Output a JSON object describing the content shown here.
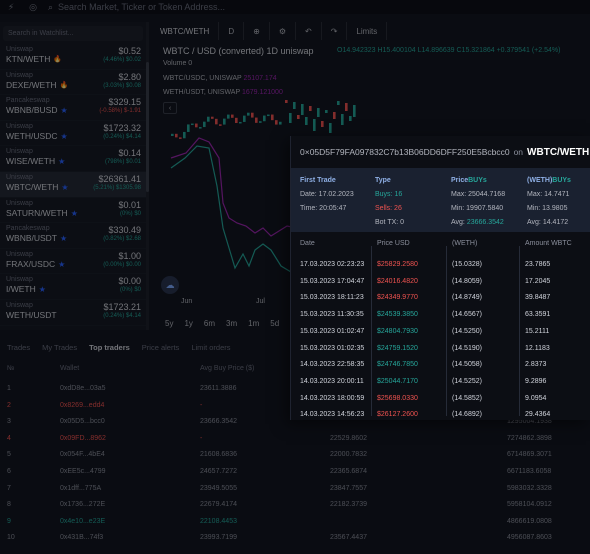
{
  "topbar": {
    "search_placeholder": "Search Market, Ticker or Token Address..."
  },
  "watchlist": {
    "search_placeholder": "Search in Watchlist...",
    "items": [
      {
        "exchange": "Uniswap",
        "pair": "KTN/WETH",
        "price": "$0.52",
        "change": "(4.46%) $0.02",
        "dir": "up",
        "badge": "fire"
      },
      {
        "exchange": "Uniswap",
        "pair": "DEXE/WETH",
        "price": "$2.80",
        "change": "(3.03%) $0.08",
        "dir": "up",
        "badge": "fire"
      },
      {
        "exchange": "Pancakeswap",
        "pair": "WBNB/BUSD",
        "price": "$329.15",
        "change": "(-0.58%) $-1.91",
        "dir": "dn",
        "badge": "star"
      },
      {
        "exchange": "Uniswap",
        "pair": "WETH/USDC",
        "price": "$1723.32",
        "change": "(0.24%) $4.14",
        "dir": "up",
        "badge": "star"
      },
      {
        "exchange": "Uniswap",
        "pair": "WISE/WETH",
        "price": "$0.14",
        "change": "(798%) $0.01",
        "dir": "up",
        "badge": "star"
      },
      {
        "exchange": "Uniswap",
        "pair": "WBTC/WETH",
        "price": "$26361.41",
        "change": "(5.21%) $1305.98",
        "dir": "up",
        "badge": "star"
      },
      {
        "exchange": "Uniswap",
        "pair": "SATURN/WETH",
        "price": "$0.01",
        "change": "(0%) $0",
        "dir": "up",
        "badge": "star"
      },
      {
        "exchange": "Pancakeswap",
        "pair": "WBNB/USDT",
        "price": "$330.49",
        "change": "(0.82%) $2.68",
        "dir": "up",
        "badge": "star"
      },
      {
        "exchange": "Uniswap",
        "pair": "FRAX/USDC",
        "price": "$1.00",
        "change": "(0.00%) $0.00",
        "dir": "up",
        "badge": "star"
      },
      {
        "exchange": "Uniswap",
        "pair": "I/WETH",
        "price": "$0.00",
        "change": "(0%) $0",
        "dir": "up",
        "badge": "star"
      },
      {
        "exchange": "Uniswap",
        "pair": "WETH/USDT",
        "price": "$1723.21",
        "change": "(0.24%) $4.14",
        "dir": "up",
        "badge": ""
      }
    ]
  },
  "chart": {
    "tabs": [
      "WBTC/WETH",
      "D",
      "Limits"
    ],
    "title": "WBTC / USD (converted)  1D  uniswap",
    "ohlc": "O14.942323  H15.400104  L14.896639  C15.321864  +0.379541 (+2.54%)",
    "volume": "Volume  0",
    "overlay1_label": "WBTC/USDC, UNISWAP",
    "overlay1_value": "25107.174",
    "overlay2_label": "WETH/USDT, UNISWAP",
    "overlay2_value": "1679.121000",
    "time_labels": [
      "Jun",
      "Jul"
    ],
    "ranges": [
      "5y",
      "1y",
      "6m",
      "3m",
      "1m",
      "5d",
      "1d"
    ]
  },
  "bottom": {
    "tabs": [
      "Trades",
      "My Trades",
      "Top traders",
      "Price alerts",
      "Limit orders"
    ],
    "headers": [
      "№",
      "Wallet",
      "Avg Buy Price ($)"
    ],
    "rows": [
      {
        "n": "1",
        "wallet": "0xdD8e...03a5",
        "avg": "23611.3886",
        "c3": "",
        "c4": "",
        "c5": "",
        "red": false
      },
      {
        "n": "2",
        "wallet": "0x8269...edd4",
        "avg": "-",
        "c3": "",
        "c4": "",
        "c5": "",
        "red": true
      },
      {
        "n": "3",
        "wallet": "0x05D5...bcc0",
        "avg": "23666.3542",
        "c3": "",
        "c4": "",
        "c5": "1295004.1938",
        "red": false
      },
      {
        "n": "4",
        "wallet": "0x09FD...8962",
        "avg": "-",
        "c3": "22529.8602",
        "c4": "",
        "c5": "7274862.3898",
        "red": true
      },
      {
        "n": "5",
        "wallet": "0x054F...4bE4",
        "avg": "21608.6836",
        "c3": "22000.7832",
        "c4": "",
        "c5": "6714869.3071",
        "red": false
      },
      {
        "n": "6",
        "wallet": "0xEE5c...4799",
        "avg": "24657.7272",
        "c3": "22365.6874",
        "c4": "",
        "c5": "6671183.6058",
        "red": false
      },
      {
        "n": "7",
        "wallet": "0x1dff...775A",
        "avg": "23949.5055",
        "c3": "23847.7557",
        "c4": "",
        "c5": "5983032.3328",
        "red": false
      },
      {
        "n": "8",
        "wallet": "0x1736...272E",
        "avg": "22679.4174",
        "c3": "22182.3739",
        "c4": "",
        "c5": "5958104.0912",
        "red": false
      },
      {
        "n": "9",
        "wallet": "0x4e10...e23E",
        "avg": "22108.4453",
        "c3": "",
        "c4": "",
        "c5": "4866619.0808",
        "red": false,
        "green": true
      },
      {
        "n": "10",
        "wallet": "0x431B...74f3",
        "avg": "23993.7199",
        "c3": "23567.4437",
        "c4": "",
        "c5": "4956087.8603",
        "red": false
      }
    ]
  },
  "popup": {
    "address": "0×05D5F79FA097832C7b13B06DD6DFF250E5Bcbcc0",
    "on": "on",
    "pair": "WBTC/WETH",
    "first_trade_label": "First Trade",
    "first_trade_date": "Date: 17.02.2023",
    "first_trade_time": "Time: 20:05:47",
    "type_label": "Type",
    "buys": "Buys: 16",
    "sells": "Sells: 26",
    "bot_tx": "Bot TX: 0",
    "price_label_a": "Price",
    "price_label_b": "BUYs",
    "price_max": "Max: 25044.7168",
    "price_min": "Min: 19907.5840",
    "price_avg": "23666.3542",
    "price_avg_label": "Avg:",
    "weth_label_a": "(WETH)",
    "weth_label_b": "BUYs",
    "weth_max": "Max: 14.7471",
    "weth_min": "Min: 13.9805",
    "weth_avg": "Avg: 14.4172",
    "table_headers": [
      "Date",
      "Price USD",
      "(WETH)",
      "Amount WBTC"
    ],
    "trades": [
      {
        "date": "17.03.2023 02:23:23",
        "price": "$25829.2580",
        "weth": "(15.0328)",
        "amount": "23.7865",
        "side": "sell"
      },
      {
        "date": "15.03.2023 17:04:47",
        "price": "$24016.4820",
        "weth": "(14.8059)",
        "amount": "17.2045",
        "side": "sell"
      },
      {
        "date": "15.03.2023 18:11:23",
        "price": "$24349.9770",
        "weth": "(14.8749)",
        "amount": "39.8487",
        "side": "sell"
      },
      {
        "date": "15.03.2023 11:30:35",
        "price": "$24539.3850",
        "weth": "(14.6567)",
        "amount": "63.3591",
        "side": "buy"
      },
      {
        "date": "15.03.2023 01:02:47",
        "price": "$24804.7930",
        "weth": "(14.5250)",
        "amount": "15.2111",
        "side": "buy"
      },
      {
        "date": "15.03.2023 01:02:35",
        "price": "$24759.1520",
        "weth": "(14.5190)",
        "amount": "12.1183",
        "side": "buy"
      },
      {
        "date": "14.03.2023 22:58:35",
        "price": "$24746.7850",
        "weth": "(14.5058)",
        "amount": "2.8373",
        "side": "buy"
      },
      {
        "date": "14.03.2023 20:00:11",
        "price": "$25044.7170",
        "weth": "(14.5252)",
        "amount": "9.2896",
        "side": "buy"
      },
      {
        "date": "14.03.2023 18:00:59",
        "price": "$25698.0330",
        "weth": "(14.5852)",
        "amount": "9.0954",
        "side": "sell"
      },
      {
        "date": "14.03.2023 14:56:23",
        "price": "$26127.2600",
        "weth": "(14.6892)",
        "amount": "29.4364",
        "side": "sell"
      }
    ]
  }
}
